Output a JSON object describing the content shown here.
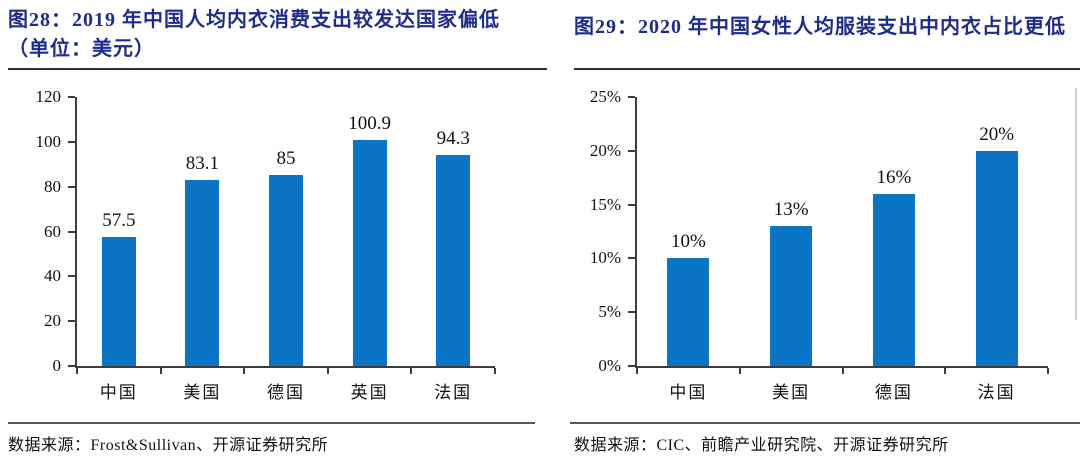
{
  "accent_colors": {
    "bar_blue": "#0b74c4",
    "title_navy": "#1f2d8a"
  },
  "chart_data": [
    {
      "type": "bar",
      "title": "图28：2019 年中国人均内衣消费支出较发达国家偏低（单位：美元）",
      "title_lines": [
        "图28：2019 年中国人均内衣消费支出较发达国家偏低",
        "（单位：美元）"
      ],
      "unit": "美元",
      "categories": [
        "中国",
        "美国",
        "德国",
        "英国",
        "法国"
      ],
      "values": [
        57.5,
        83.1,
        85,
        100.9,
        94.3
      ],
      "value_labels": [
        "57.5",
        "83.1",
        "85",
        "100.9",
        "94.3"
      ],
      "ylim": [
        0,
        120
      ],
      "yticks": [
        0,
        20,
        40,
        60,
        80,
        100,
        120
      ],
      "ytick_labels": [
        "0",
        "20",
        "40",
        "60",
        "80",
        "100",
        "120"
      ],
      "xlabel": "",
      "ylabel": "",
      "grid": false,
      "legend": "none",
      "bar_color": "#0b74c4",
      "source": "数据来源：Frost&Sullivan、开源证券研究所"
    },
    {
      "type": "bar",
      "title": "图29：2020 年中国女性人均服装支出中内衣占比更低",
      "title_lines": [
        "图29：2020 年中国女性人均服装支出中内衣占比更低"
      ],
      "unit": "%",
      "categories": [
        "中国",
        "美国",
        "德国",
        "法国"
      ],
      "values": [
        10,
        13,
        16,
        20
      ],
      "value_labels": [
        "10%",
        "13%",
        "16%",
        "20%"
      ],
      "ylim": [
        0,
        25
      ],
      "yticks": [
        0,
        5,
        10,
        15,
        20,
        25
      ],
      "ytick_labels": [
        "0%",
        "5%",
        "10%",
        "15%",
        "20%",
        "25%"
      ],
      "xlabel": "",
      "ylabel": "",
      "grid": false,
      "legend": "none",
      "bar_color": "#0b74c4",
      "source": "数据来源：CIC、前瞻产业研究院、开源证券研究所"
    }
  ]
}
